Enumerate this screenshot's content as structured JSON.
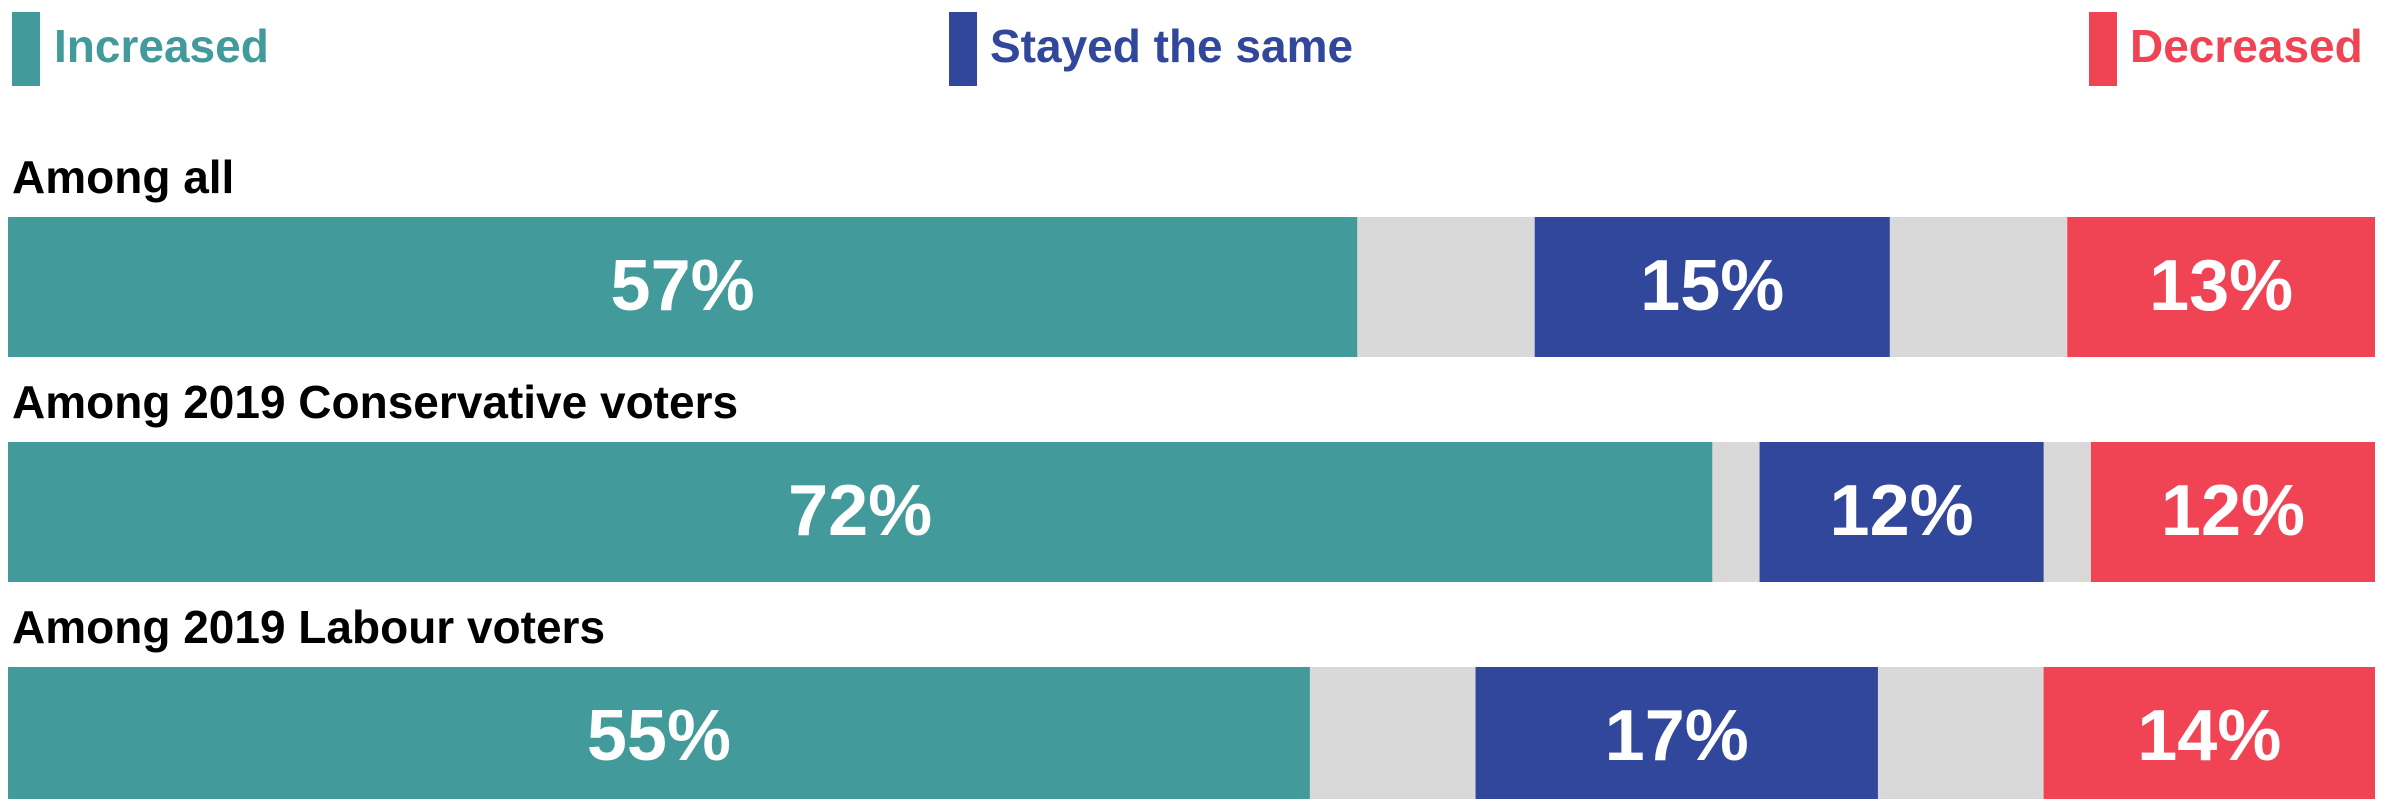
{
  "chart_data": {
    "type": "bar",
    "orientation": "horizontal",
    "stacked": true,
    "categories": [
      "Among all",
      "Among 2019 Conservative voters",
      "Among 2019 Labour voters"
    ],
    "xlim": [
      0,
      100
    ],
    "remainder_color": "#d9d9d9",
    "series": [
      {
        "name": "Increased",
        "color": "#429a9a",
        "values": [
          57,
          72,
          55
        ],
        "value_labels": [
          "57%",
          "72%",
          "55%"
        ]
      },
      {
        "name": "Stayed the same",
        "color": "#31479b",
        "values": [
          15,
          12,
          17
        ],
        "value_labels": [
          "15%",
          "12%",
          "17%"
        ]
      },
      {
        "name": "Decreased",
        "color": "#f04455",
        "values": [
          13,
          12,
          14
        ],
        "value_labels": [
          "13%",
          "12%",
          "14%"
        ]
      }
    ]
  }
}
